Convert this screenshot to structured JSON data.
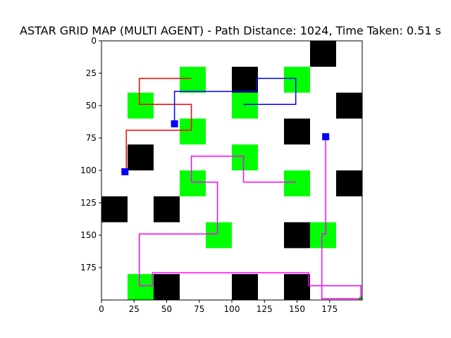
{
  "chart_data": {
    "type": "grid-map",
    "title": "ASTAR GRID MAP (MULTI AGENT) - Path Distance: 1024, Time Taken: 0.51 s",
    "xlabel": "",
    "ylabel": "",
    "xlim": [
      0,
      200
    ],
    "ylim": [
      200,
      0
    ],
    "y_inverted": true,
    "grid": false,
    "cell_size": 20,
    "x_ticks": [
      0,
      25,
      50,
      75,
      100,
      125,
      150,
      175
    ],
    "y_ticks": [
      0,
      25,
      50,
      75,
      100,
      125,
      150,
      175
    ],
    "colors": {
      "obstacle": "#000000",
      "goal_cell": "#00ff00",
      "agent_marker": "#0000ff",
      "end_marker": "#2ca02c"
    },
    "obstacles": [
      [
        160,
        0
      ],
      [
        100,
        20
      ],
      [
        180,
        40
      ],
      [
        140,
        60
      ],
      [
        20,
        80
      ],
      [
        180,
        100
      ],
      [
        0,
        120
      ],
      [
        40,
        120
      ],
      [
        140,
        140
      ],
      [
        40,
        180
      ],
      [
        100,
        180
      ],
      [
        140,
        180
      ]
    ],
    "green_cells": [
      [
        60,
        20
      ],
      [
        140,
        20
      ],
      [
        20,
        40
      ],
      [
        100,
        40
      ],
      [
        60,
        60
      ],
      [
        100,
        80
      ],
      [
        60,
        100
      ],
      [
        140,
        100
      ],
      [
        80,
        140
      ],
      [
        160,
        140
      ],
      [
        20,
        180
      ]
    ],
    "series": [
      {
        "color": "#ff0000",
        "points": [
          [
            19,
            101
          ],
          [
            19,
            69
          ],
          [
            69,
            69
          ],
          [
            69,
            49
          ],
          [
            29,
            49
          ],
          [
            29,
            29
          ],
          [
            69,
            29
          ]
        ]
      },
      {
        "color": "#0000ff",
        "points": [
          [
            56,
            64
          ],
          [
            56,
            39
          ],
          [
            119,
            39
          ],
          [
            119,
            29
          ],
          [
            149,
            29
          ],
          [
            149,
            49
          ],
          [
            109,
            49
          ]
        ]
      },
      {
        "color": "#ff00ff",
        "points": [
          [
            172,
            74
          ],
          [
            172,
            149
          ],
          [
            169,
            149
          ],
          [
            169,
            199
          ],
          [
            199,
            199
          ],
          [
            199,
            189
          ],
          [
            159,
            189
          ],
          [
            159,
            179
          ],
          [
            39,
            179
          ],
          [
            39,
            189
          ],
          [
            29,
            189
          ],
          [
            29,
            149
          ],
          [
            89,
            149
          ],
          [
            89,
            109
          ],
          [
            69,
            109
          ],
          [
            69,
            89
          ],
          [
            109,
            89
          ],
          [
            109,
            109
          ],
          [
            149,
            109
          ]
        ]
      }
    ],
    "agent_starts": [
      [
        18,
        101
      ],
      [
        56,
        64
      ],
      [
        172,
        74
      ]
    ],
    "end_point": [
      199,
      199
    ]
  }
}
